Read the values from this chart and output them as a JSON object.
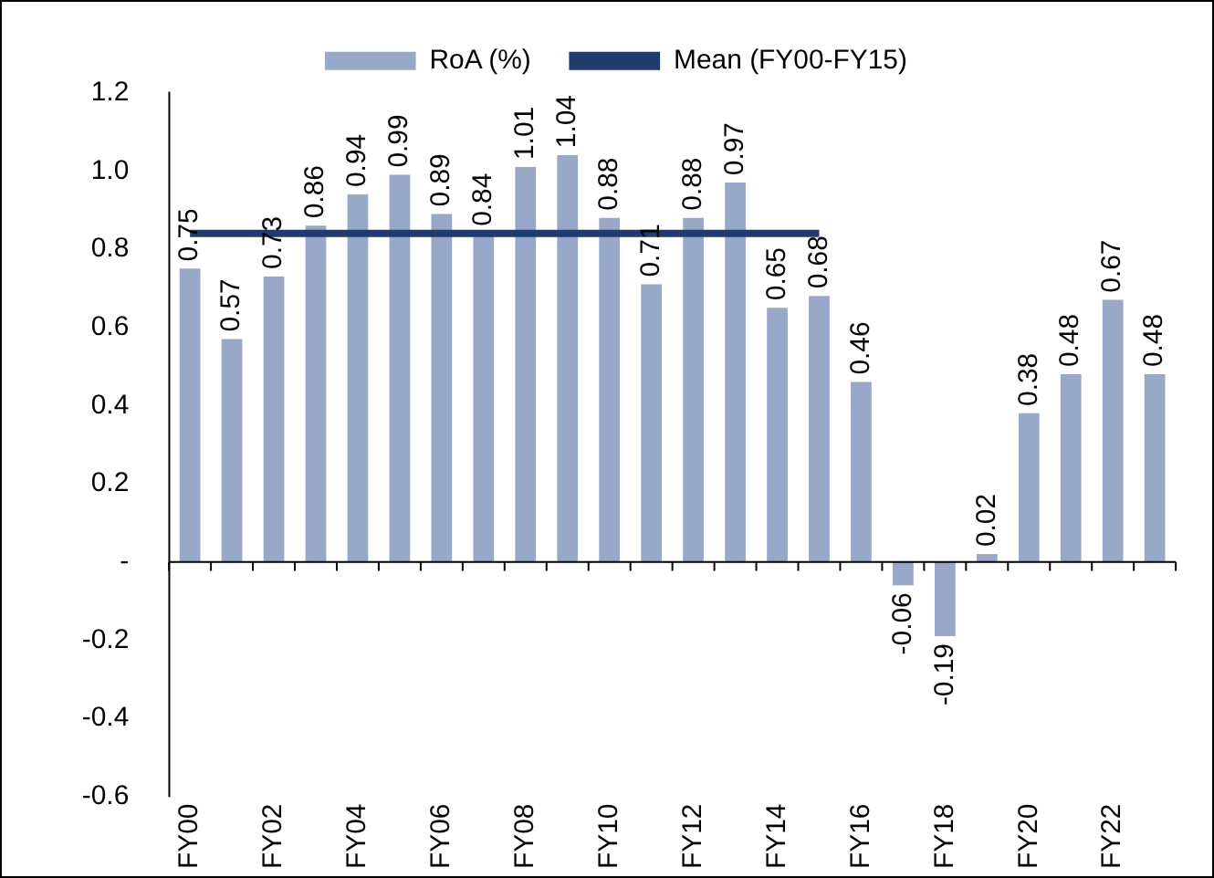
{
  "chart_data": {
    "type": "bar",
    "categories": [
      "FY00",
      null,
      "FY02",
      null,
      "FY04",
      null,
      "FY06",
      null,
      "FY08",
      null,
      "FY10",
      null,
      "FY12",
      null,
      "FY14",
      null,
      "FY16",
      null,
      "FY18",
      null,
      "FY20",
      null,
      "FY22",
      null
    ],
    "series": [
      {
        "name": "RoA (%)",
        "color": "#98a8c8",
        "values": [
          0.75,
          0.57,
          0.73,
          0.86,
          0.94,
          0.99,
          0.89,
          0.84,
          1.01,
          1.04,
          0.88,
          0.71,
          0.88,
          0.97,
          0.65,
          0.68,
          0.46,
          -0.06,
          -0.19,
          0.02,
          0.38,
          0.48,
          0.67,
          0.48
        ],
        "value_labels": [
          "0.75",
          "0.57",
          "0.73",
          "0.86",
          "0.94",
          "0.99",
          "0.89",
          "0.84",
          "1.01",
          "1.04",
          "0.88",
          "0.71",
          "0.88",
          "0.97",
          "0.65",
          "0.68",
          "0.46",
          "-0.06",
          "-0.19",
          "0.02",
          "0.38",
          "0.48",
          "0.67",
          "0.48"
        ]
      },
      {
        "name": "Mean (FY00-FY15)",
        "type": "line",
        "color": "#1f3b70",
        "values": [
          0.84,
          0.84,
          0.84,
          0.84,
          0.84,
          0.84,
          0.84,
          0.84,
          0.84,
          0.84,
          0.84,
          0.84,
          0.84,
          0.84,
          0.84,
          0.84,
          null,
          null,
          null,
          null,
          null,
          null,
          null,
          null
        ]
      }
    ],
    "ylim": [
      -0.6,
      1.2
    ],
    "yticks": [
      -0.6,
      -0.4,
      -0.2,
      {
        "value": 0,
        "label": "-"
      },
      0.2,
      0.4,
      0.6,
      0.8,
      {
        "value": 1,
        "label": "1.0"
      },
      1.2
    ],
    "legend": "top",
    "marker": "none",
    "line_style": "solid"
  }
}
